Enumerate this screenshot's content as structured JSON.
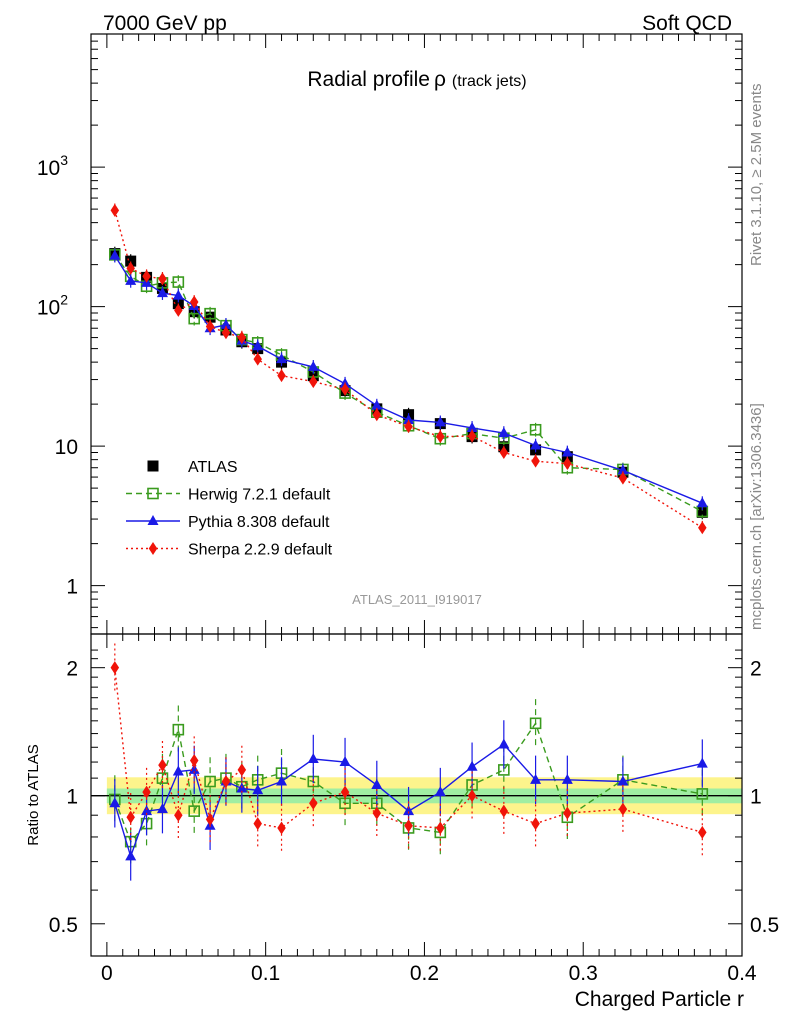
{
  "header": {
    "left": "7000 GeV pp",
    "right": "Soft QCD"
  },
  "side_text": {
    "rivet": "Rivet 3.1.10, ≥ 2.5M events",
    "mcplots": "mcplots.cern.ch [arXiv:1306.3436]"
  },
  "chart_data": [
    {
      "type": "scatter",
      "title": "Radial profile",
      "title_symbol": "ρ",
      "subtitle": "(track jets)",
      "analysis": "ATLAS_2011_I919017",
      "yscale": "log",
      "xlim": [
        -0.01,
        0.4
      ],
      "ylim": [
        0.45,
        9000
      ],
      "y_ticks": [
        {
          "value": 1,
          "base": "1",
          "exp": ""
        },
        {
          "value": 10,
          "base": "10",
          "exp": ""
        },
        {
          "value": 100,
          "base": "10",
          "exp": "2"
        },
        {
          "value": 1000,
          "base": "10",
          "exp": "3"
        }
      ],
      "x": [
        0.005,
        0.015,
        0.025,
        0.035,
        0.045,
        0.055,
        0.065,
        0.075,
        0.085,
        0.095,
        0.11,
        0.13,
        0.15,
        0.17,
        0.19,
        0.21,
        0.23,
        0.25,
        0.27,
        0.29,
        0.325,
        0.375
      ],
      "series": [
        {
          "name": "ATLAS",
          "color": "#000000",
          "marker": "square-filled",
          "line": "none",
          "values": [
            240,
            212,
            162,
            135,
            105,
            92,
            84,
            68,
            56,
            50,
            40,
            32,
            25,
            18.5,
            16.8,
            14.5,
            11.7,
            9.9,
            9.4,
            8.4,
            6.5,
            3.35
          ]
        },
        {
          "name": "Herwig 7.2.1 default",
          "color": "#3a9b1e",
          "marker": "square-open",
          "line": "dashed",
          "values": [
            235,
            165,
            140,
            148,
            150,
            82,
            89,
            73,
            58,
            55,
            45,
            34,
            24,
            17.5,
            14,
            11.3,
            12.3,
            11.4,
            13.1,
            7,
            6.8,
            3.4
          ]
        },
        {
          "name": "Pythia 8.308 default",
          "color": "#1a1ae6",
          "marker": "triangle-filled",
          "line": "solid",
          "values": [
            232,
            153,
            148,
            125,
            120,
            101,
            70,
            74,
            57,
            52,
            42,
            37,
            28,
            19.5,
            15.4,
            14.8,
            13.5,
            12.4,
            10.1,
            9.0,
            6.7,
            3.9
          ]
        },
        {
          "name": "Sherpa 2.2.9 default",
          "color": "#f0140a",
          "marker": "diamond-filled",
          "line": "dotted",
          "values": [
            490,
            188,
            165,
            158,
            94,
            108,
            72,
            65,
            60,
            42,
            32,
            29,
            25.5,
            16.8,
            13.8,
            11.7,
            11.8,
            9.0,
            7.8,
            7.5,
            5.9,
            2.6
          ]
        }
      ],
      "legend": {
        "placement": "lower-left"
      }
    },
    {
      "type": "scatter",
      "ylabel": "Ratio to ATLAS",
      "xlabel": "Charged Particle r",
      "xlim": [
        -0.01,
        0.4
      ],
      "ylim": [
        0.42,
        2.4
      ],
      "yscale": "log",
      "y_ticks": [
        0.5,
        1,
        2
      ],
      "x_ticks": [
        0,
        0.1,
        0.2,
        0.3,
        0.4
      ],
      "x_tick_labels": [
        "0",
        "0.1",
        "0.2",
        "0.3",
        "0.4"
      ],
      "x": [
        0.005,
        0.015,
        0.025,
        0.035,
        0.045,
        0.055,
        0.065,
        0.075,
        0.085,
        0.095,
        0.11,
        0.13,
        0.15,
        0.17,
        0.19,
        0.21,
        0.23,
        0.25,
        0.27,
        0.29,
        0.325,
        0.375
      ],
      "series": [
        {
          "name": "Herwig 7.2.1 default",
          "values": [
            0.98,
            0.78,
            0.86,
            1.1,
            1.43,
            0.92,
            1.08,
            1.1,
            1.05,
            1.09,
            1.13,
            1.08,
            0.96,
            0.96,
            0.84,
            0.82,
            1.06,
            1.15,
            1.48,
            0.89,
            1.09,
            1.01
          ]
        },
        {
          "name": "Pythia 8.308 default",
          "values": [
            0.96,
            0.72,
            0.92,
            0.93,
            1.14,
            1.15,
            0.85,
            1.08,
            1.04,
            1.03,
            1.08,
            1.22,
            1.2,
            1.06,
            0.92,
            1.02,
            1.17,
            1.32,
            1.09,
            1.09,
            1.08,
            1.19
          ]
        },
        {
          "name": "Sherpa 2.2.9 default",
          "values": [
            2.0,
            0.89,
            1.02,
            1.18,
            0.9,
            1.21,
            0.88,
            1.08,
            1.15,
            0.86,
            0.84,
            0.96,
            1.02,
            0.91,
            0.85,
            0.84,
            1.0,
            0.92,
            0.86,
            0.91,
            0.93,
            0.82
          ]
        }
      ]
    }
  ]
}
